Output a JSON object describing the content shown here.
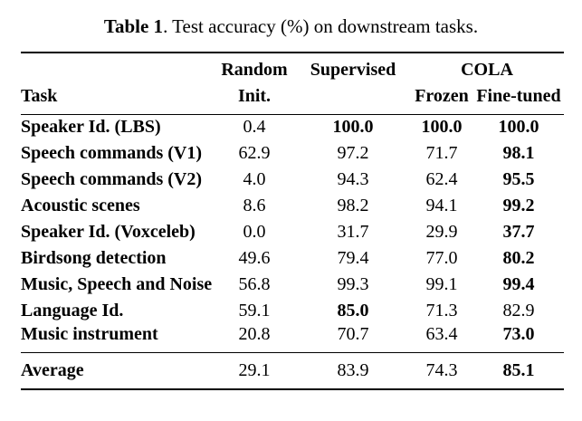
{
  "page": {
    "background_color": "#ffffff",
    "text_color": "#000000"
  },
  "caption": {
    "label": "Table 1",
    "text": ". Test accuracy (%) on downstream tasks."
  },
  "table": {
    "headers": {
      "task": "Task",
      "random_line1": "Random",
      "random_line2": "Init.",
      "supervised": "Supervised",
      "cola_group": "COLA",
      "cola_frozen": "Frozen",
      "cola_finetuned": "Fine-tuned"
    },
    "columns": [
      "Task",
      "Random Init.",
      "Supervised",
      "COLA Frozen",
      "COLA Fine-tuned"
    ],
    "rows": [
      {
        "task": "Speaker Id. (LBS)",
        "values": [
          "0.4",
          "100.0",
          "100.0",
          "100.0"
        ],
        "bold": [
          false,
          true,
          true,
          true
        ]
      },
      {
        "task": "Speech commands (V1)",
        "values": [
          "62.9",
          "97.2",
          "71.7",
          "98.1"
        ],
        "bold": [
          false,
          false,
          false,
          true
        ]
      },
      {
        "task": "Speech commands (V2)",
        "values": [
          "4.0",
          "94.3",
          "62.4",
          "95.5"
        ],
        "bold": [
          false,
          false,
          false,
          true
        ]
      },
      {
        "task": "Acoustic scenes",
        "values": [
          "8.6",
          "98.2",
          "94.1",
          "99.2"
        ],
        "bold": [
          false,
          false,
          false,
          true
        ]
      },
      {
        "task": "Speaker Id. (Voxceleb)",
        "values": [
          "0.0",
          "31.7",
          "29.9",
          "37.7"
        ],
        "bold": [
          false,
          false,
          false,
          true
        ]
      },
      {
        "task": "Birdsong detection",
        "values": [
          "49.6",
          "79.4",
          "77.0",
          "80.2"
        ],
        "bold": [
          false,
          false,
          false,
          true
        ]
      },
      {
        "task": "Music, Speech and Noise",
        "values": [
          "56.8",
          "99.3",
          "99.1",
          "99.4"
        ],
        "bold": [
          false,
          false,
          false,
          true
        ]
      },
      {
        "task": "Language Id.",
        "values": [
          "59.1",
          "85.0",
          "71.3",
          "82.9"
        ],
        "bold": [
          false,
          true,
          false,
          false
        ]
      },
      {
        "task": "Music instrument",
        "values": [
          "20.8",
          "70.7",
          "63.4",
          "73.0"
        ],
        "bold": [
          false,
          false,
          false,
          true
        ]
      }
    ],
    "average": {
      "task": "Average",
      "values": [
        "29.1",
        "83.9",
        "74.3",
        "85.1"
      ],
      "bold": [
        false,
        false,
        false,
        true
      ]
    }
  }
}
